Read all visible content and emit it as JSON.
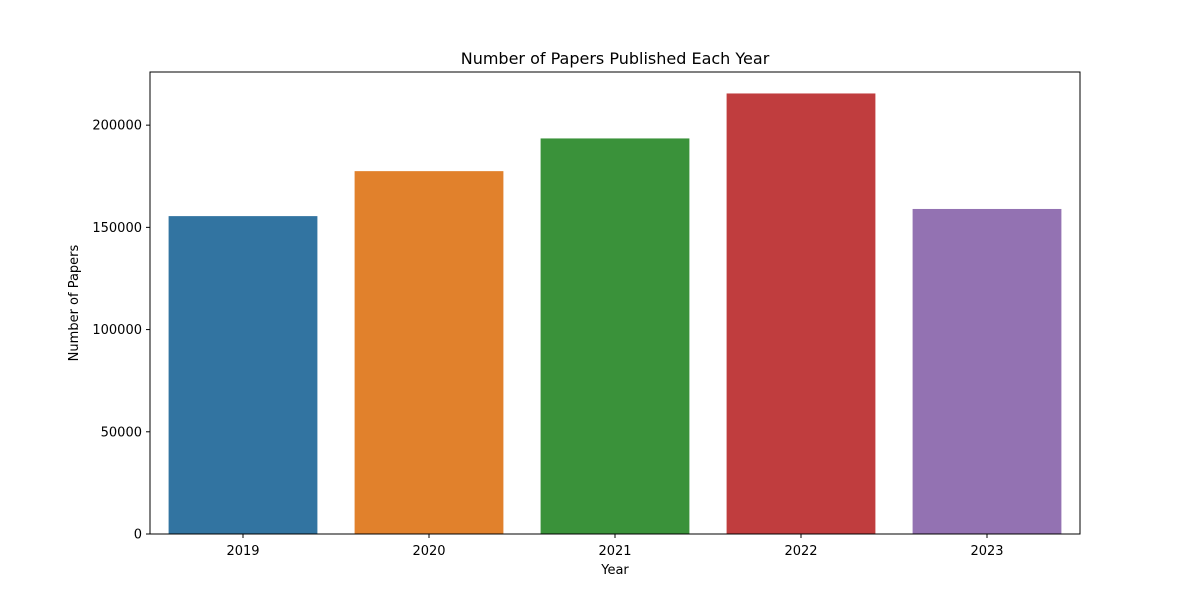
{
  "chart_data": {
    "type": "bar",
    "title": "Number of Papers Published Each Year",
    "xlabel": "Year",
    "ylabel": "Number of Papers",
    "categories": [
      "2019",
      "2020",
      "2021",
      "2022",
      "2023"
    ],
    "values": [
      155500,
      177500,
      193500,
      215500,
      159000
    ],
    "colors": [
      "#3274a1",
      "#e1812c",
      "#3a923a",
      "#c03d3e",
      "#9372b2"
    ],
    "ylim": [
      0,
      226000
    ],
    "yticks": [
      0,
      50000,
      100000,
      150000,
      200000
    ],
    "ytick_labels": [
      "0",
      "50000",
      "100000",
      "150000",
      "200000"
    ],
    "grid": false,
    "legend": false
  }
}
